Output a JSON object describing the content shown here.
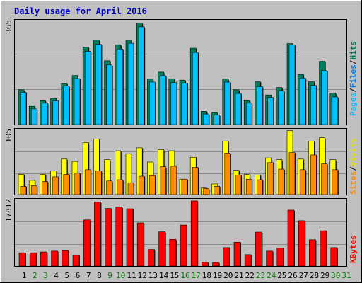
{
  "title": "Daily usage for April 2016",
  "colors": {
    "background": "#C0C0C0",
    "panel": "#C0C0C0",
    "title_text": "#0000C0",
    "hits": "#007F5F",
    "files": "#00C0FF",
    "pages": "#00C0FF",
    "visits": "#FFFF00",
    "sites": "#FF8C00",
    "kbytes": "#FF0000",
    "weekend_label": "#007F00",
    "weekday_label": "#000000"
  },
  "chart_data": [
    {
      "type": "bar",
      "panel": "hits-files-pages",
      "ymax_label": "365",
      "ymax": 365,
      "legend": {
        "pages": "Pages",
        "files": "Files",
        "hits": "Hits",
        "sep1": "/",
        "sep2": "/"
      },
      "categories": [
        "1",
        "2",
        "3",
        "4",
        "5",
        "6",
        "7",
        "8",
        "9",
        "10",
        "11",
        "12",
        "13",
        "14",
        "15",
        "16",
        "17",
        "18",
        "19",
        "20",
        "21",
        "22",
        "23",
        "24",
        "25",
        "26",
        "27",
        "28",
        "29",
        "30",
        "31"
      ],
      "series": [
        {
          "name": "Hits",
          "values": [
            122,
            64,
            84,
            92,
            144,
            172,
            272,
            296,
            224,
            280,
            296,
            356,
            160,
            184,
            160,
            156,
            268,
            46,
            42,
            160,
            122,
            84,
            150,
            104,
            130,
            284,
            176,
            150,
            222,
            110,
            0
          ]
        },
        {
          "name": "Files",
          "values": [
            118,
            60,
            80,
            88,
            140,
            166,
            262,
            286,
            214,
            270,
            290,
            348,
            154,
            176,
            152,
            150,
            258,
            42,
            38,
            154,
            114,
            80,
            138,
            100,
            124,
            284,
            168,
            142,
            194,
            102,
            0
          ]
        },
        {
          "name": "Pages",
          "values": [
            0,
            0,
            0,
            0,
            0,
            0,
            0,
            0,
            0,
            0,
            0,
            0,
            0,
            0,
            0,
            0,
            0,
            0,
            0,
            0,
            0,
            0,
            0,
            0,
            0,
            0,
            0,
            0,
            0,
            0,
            0
          ]
        }
      ]
    },
    {
      "type": "bar",
      "panel": "visits-sites",
      "ymax_label": "105",
      "ymax": 105,
      "legend": {
        "sites": "Sites",
        "visits": "Visits",
        "sep1": "/"
      },
      "categories": [
        "1",
        "2",
        "3",
        "4",
        "5",
        "6",
        "7",
        "8",
        "9",
        "10",
        "11",
        "12",
        "13",
        "14",
        "15",
        "16",
        "17",
        "18",
        "19",
        "20",
        "21",
        "22",
        "23",
        "24",
        "25",
        "26",
        "27",
        "28",
        "29",
        "30",
        "31"
      ],
      "series": [
        {
          "name": "Visits",
          "values": [
            34,
            24,
            34,
            40,
            60,
            56,
            88,
            94,
            59,
            74,
            69,
            79,
            55,
            76,
            74,
            26,
            63,
            11,
            18,
            90,
            41,
            34,
            33,
            62,
            59,
            108,
            60,
            90,
            96,
            59,
            0
          ]
        },
        {
          "name": "Sites",
          "values": [
            14,
            15,
            22,
            30,
            34,
            36,
            42,
            40,
            23,
            25,
            20,
            31,
            32,
            47,
            48,
            26,
            46,
            10,
            14,
            70,
            33,
            26,
            25,
            54,
            43,
            71,
            42,
            67,
            52,
            42,
            0
          ]
        }
      ]
    },
    {
      "type": "bar",
      "panel": "kbytes",
      "ymax_label": "17812",
      "ymax": 17812,
      "legend": {
        "kbytes": "KBytes"
      },
      "categories": [
        "1",
        "2",
        "3",
        "4",
        "5",
        "6",
        "7",
        "8",
        "9",
        "10",
        "11",
        "12",
        "13",
        "14",
        "15",
        "16",
        "17",
        "18",
        "19",
        "20",
        "21",
        "22",
        "23",
        "24",
        "25",
        "26",
        "27",
        "28",
        "29",
        "30",
        "31"
      ],
      "series": [
        {
          "name": "KBytes",
          "values": [
            4900,
            4900,
            5200,
            5500,
            5700,
            4100,
            17000,
            23600,
            21200,
            21700,
            21100,
            15900,
            6100,
            12600,
            9800,
            15100,
            24000,
            1400,
            1300,
            6800,
            8800,
            4200,
            12500,
            5500,
            6700,
            20600,
            16700,
            9700,
            13000,
            6800,
            0
          ]
        }
      ]
    }
  ],
  "x_labels": [
    "1",
    "2",
    "3",
    "4",
    "5",
    "6",
    "7",
    "8",
    "9",
    "10",
    "11",
    "12",
    "13",
    "14",
    "15",
    "16",
    "17",
    "18",
    "19",
    "20",
    "21",
    "22",
    "23",
    "24",
    "25",
    "26",
    "27",
    "28",
    "29",
    "30",
    "31"
  ],
  "weekend_days": [
    2,
    3,
    9,
    10,
    16,
    17,
    23,
    24,
    30,
    31
  ]
}
